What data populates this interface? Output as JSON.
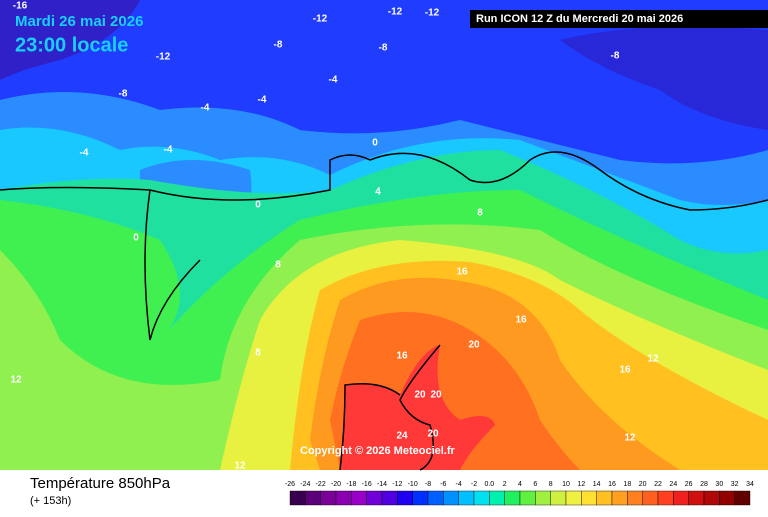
{
  "header": {
    "date": "Mardi 26 mai 2026",
    "time": "23:00 locale",
    "run": "Run ICON 12 Z du Mercredi 20 mai 2026"
  },
  "footer": {
    "title": "Température 850hPa",
    "subtitle": "(+ 153h)"
  },
  "map": {
    "copyright": "Copyright © 2026 Meteociel.fr",
    "labels": [
      "-16",
      "-12",
      "-12",
      "-12",
      "-12",
      "-8",
      "-8",
      "-8",
      "-8",
      "-4",
      "-4",
      "-4",
      "-4",
      "-4",
      "0",
      "0",
      "0",
      "4",
      "8",
      "8",
      "16",
      "16",
      "20",
      "16",
      "12",
      "8",
      "20",
      "20",
      "24",
      "20",
      "12",
      "16",
      "12",
      "12"
    ]
  },
  "legend": {
    "labels": [
      "-26",
      "-24",
      "-22",
      "-20",
      "-18",
      "-16",
      "-14",
      "-12",
      "-10",
      "-8",
      "-6",
      "-4",
      "-2",
      "0.0",
      "2",
      "4",
      "6",
      "8",
      "10",
      "12",
      "14",
      "16",
      "18",
      "20",
      "22",
      "24",
      "26",
      "28",
      "30",
      "32",
      "34"
    ],
    "colors": [
      "#3a0050",
      "#5a0078",
      "#7a0098",
      "#8a00b0",
      "#9800c8",
      "#7000d8",
      "#5000e0",
      "#2000f0",
      "#0030ff",
      "#0060ff",
      "#0090ff",
      "#00c0ff",
      "#00e0f0",
      "#00f0b0",
      "#20f060",
      "#60f040",
      "#a0f040",
      "#d0f040",
      "#f0f040",
      "#ffe030",
      "#ffc020",
      "#ffa020",
      "#ff8020",
      "#ff6020",
      "#ff4020",
      "#f02020",
      "#d01010",
      "#b00808",
      "#900000",
      "#600000"
    ]
  }
}
